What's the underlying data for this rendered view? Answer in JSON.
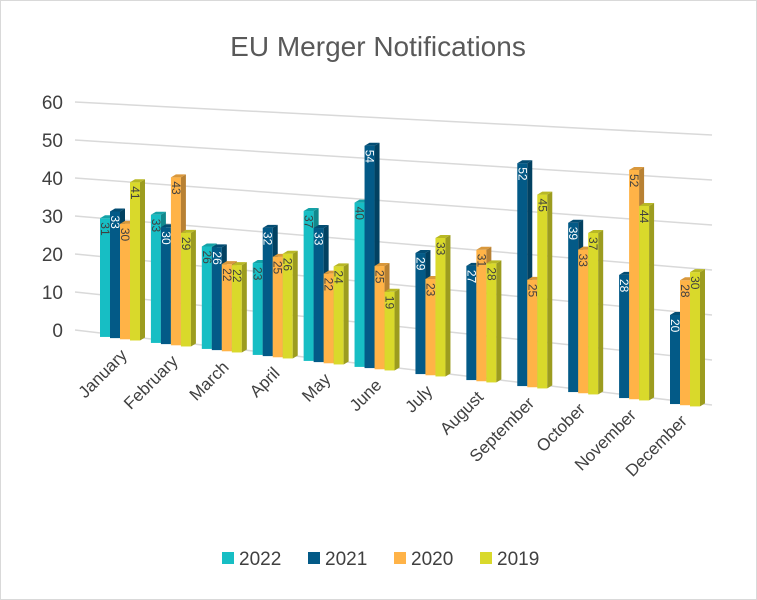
{
  "chart_data": {
    "type": "bar",
    "title": "EU Merger Notifications",
    "xlabel": "",
    "ylabel": "",
    "ylim": [
      0,
      60
    ],
    "yticks": [
      "0",
      "10",
      "20",
      "30",
      "40",
      "50",
      "60"
    ],
    "grid": true,
    "legend_position": "bottom",
    "categories": [
      "January",
      "February",
      "March",
      "April",
      "May",
      "June",
      "July",
      "August",
      "September",
      "October",
      "November",
      "December"
    ],
    "series": [
      {
        "name": "2022",
        "color": "#17BEC4",
        "values": [
          31,
          33,
          26,
          23,
          37,
          40,
          null,
          null,
          null,
          null,
          null,
          null
        ]
      },
      {
        "name": "2021",
        "color": "#035A87",
        "values": [
          33,
          30,
          26,
          32,
          33,
          54,
          29,
          27,
          52,
          39,
          28,
          20
        ]
      },
      {
        "name": "2020",
        "color": "#FFB347",
        "values": [
          30,
          43,
          22,
          25,
          22,
          25,
          23,
          31,
          25,
          33,
          52,
          28
        ]
      },
      {
        "name": "2019",
        "color": "#D9D92B",
        "values": [
          41,
          29,
          22,
          26,
          24,
          19,
          33,
          28,
          45,
          37,
          44,
          30
        ]
      }
    ]
  }
}
